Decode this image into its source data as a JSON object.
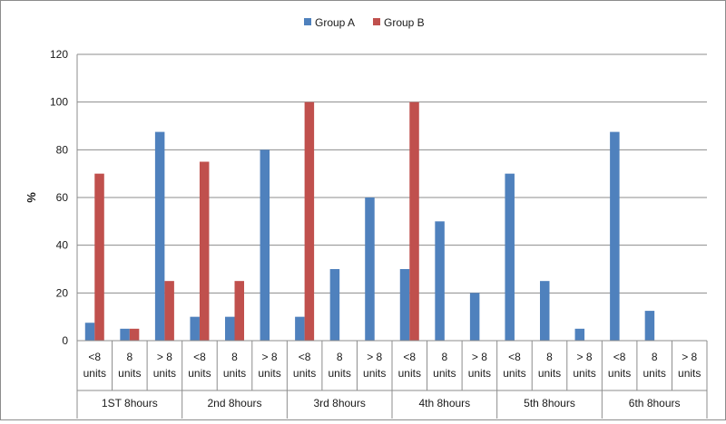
{
  "chart_data": {
    "type": "bar",
    "ylabel": "%",
    "ylim": [
      0,
      120
    ],
    "yticks": [
      0,
      20,
      40,
      60,
      80,
      100,
      120
    ],
    "grid": true,
    "legend_position": "top-center",
    "groups": [
      "1ST 8hours",
      "2nd 8hours",
      "3rd 8hours",
      "4th 8hours",
      "5th 8hours",
      "6th 8hours"
    ],
    "categories": [
      [
        "<8",
        "units"
      ],
      [
        "8",
        "units"
      ],
      [
        "> 8",
        "units"
      ],
      [
        "<8",
        "units"
      ],
      [
        "8",
        "units"
      ],
      [
        "> 8",
        "units"
      ],
      [
        "<8",
        "units"
      ],
      [
        "8",
        "units"
      ],
      [
        "> 8",
        "units"
      ],
      [
        "<8",
        "units"
      ],
      [
        "8",
        "units"
      ],
      [
        "> 8",
        "units"
      ],
      [
        "<8",
        "units"
      ],
      [
        "8",
        "units"
      ],
      [
        "> 8",
        "units"
      ],
      [
        "<8",
        "units"
      ],
      [
        "8",
        "units"
      ],
      [
        "> 8",
        "units"
      ]
    ],
    "series": [
      {
        "name": "Group A",
        "color": "#4f81bd",
        "values": [
          7.5,
          5,
          87.5,
          10,
          10,
          80,
          10,
          30,
          60,
          30,
          50,
          20,
          70,
          25,
          5,
          87.5,
          12.5,
          0
        ]
      },
      {
        "name": "Group B",
        "color": "#c0504d",
        "values": [
          70,
          5,
          25,
          75,
          25,
          0,
          100,
          0,
          0,
          100,
          0,
          0,
          0,
          0,
          0,
          0,
          0,
          0
        ]
      }
    ]
  }
}
